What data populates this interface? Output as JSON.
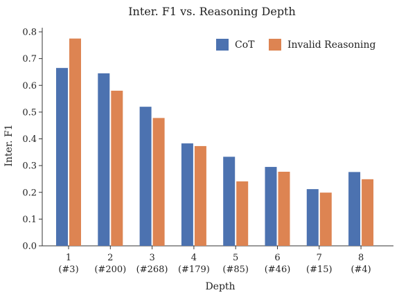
{
  "chart_data": {
    "type": "bar",
    "title": "Inter. F1 vs. Reasoning Depth",
    "xlabel": "Depth",
    "ylabel": "Inter. F1",
    "ylim": [
      0,
      0.8
    ],
    "yticks": [
      "0.0",
      "0.1",
      "0.2",
      "0.3",
      "0.4",
      "0.5",
      "0.6",
      "0.7",
      "0.8"
    ],
    "categories": [
      {
        "depth": "1",
        "count": "(#3)"
      },
      {
        "depth": "2",
        "count": "(#200)"
      },
      {
        "depth": "3",
        "count": "(#268)"
      },
      {
        "depth": "4",
        "count": "(#179)"
      },
      {
        "depth": "5",
        "count": "(#85)"
      },
      {
        "depth": "6",
        "count": "(#46)"
      },
      {
        "depth": "7",
        "count": "(#15)"
      },
      {
        "depth": "8",
        "count": "(#4)"
      }
    ],
    "series": [
      {
        "name": "CoT",
        "color": "#4c72b0",
        "values": [
          0.665,
          0.645,
          0.52,
          0.383,
          0.333,
          0.295,
          0.212,
          0.276
        ]
      },
      {
        "name": "Invalid Reasoning",
        "color": "#dd8452",
        "values": [
          0.775,
          0.58,
          0.478,
          0.373,
          0.241,
          0.277,
          0.199,
          0.249
        ]
      }
    ],
    "legend_position": "top-right",
    "grid": false
  }
}
